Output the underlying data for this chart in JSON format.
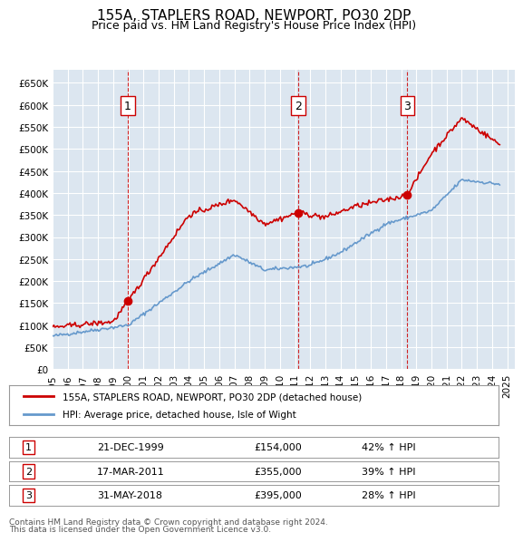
{
  "title": "155A, STAPLERS ROAD, NEWPORT, PO30 2DP",
  "subtitle": "Price paid vs. HM Land Registry's House Price Index (HPI)",
  "legend_line1": "155A, STAPLERS ROAD, NEWPORT, PO30 2DP (detached house)",
  "legend_line2": "HPI: Average price, detached house, Isle of Wight",
  "footer1": "Contains HM Land Registry data © Crown copyright and database right 2024.",
  "footer2": "This data is licensed under the Open Government Licence v3.0.",
  "sales": [
    {
      "num": 1,
      "date": "21-DEC-1999",
      "price": "£154,000",
      "change": "42% ↑ HPI",
      "year": 1999.97
    },
    {
      "num": 2,
      "date": "17-MAR-2011",
      "price": "£355,000",
      "change": "39% ↑ HPI",
      "year": 2011.21
    },
    {
      "num": 3,
      "date": "31-MAY-2018",
      "price": "£395,000",
      "change": "28% ↑ HPI",
      "year": 2018.41
    }
  ],
  "sale_prices": [
    154000,
    355000,
    395000
  ],
  "ylim": [
    0,
    680000
  ],
  "yticks": [
    0,
    50000,
    100000,
    150000,
    200000,
    250000,
    300000,
    350000,
    400000,
    450000,
    500000,
    550000,
    600000,
    650000
  ],
  "background_color": "#dce6f0",
  "plot_bg": "#dce6f0",
  "red_color": "#cc0000",
  "blue_color": "#6699cc",
  "sale_dot_color": "#cc0000",
  "vline_color": "#cc0000"
}
